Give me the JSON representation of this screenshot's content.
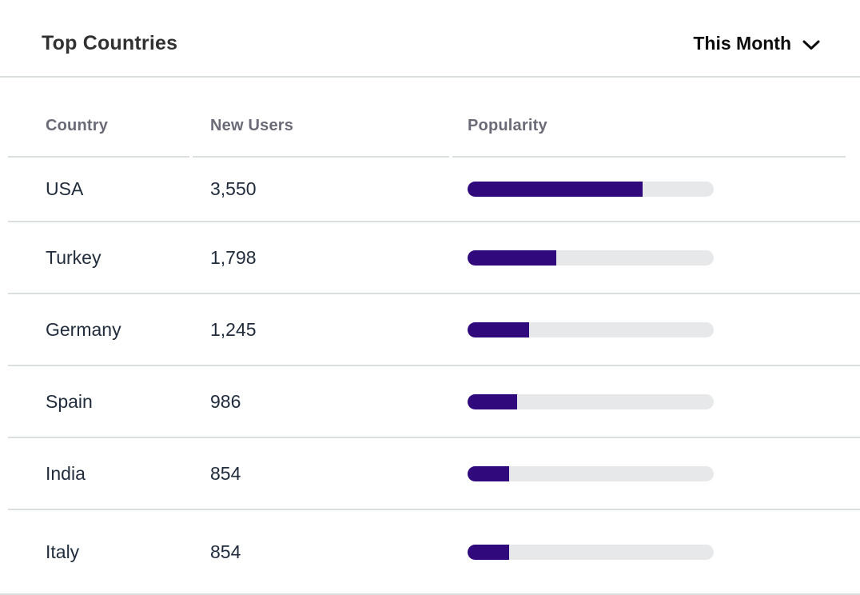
{
  "colors": {
    "card_bg": "#ffffff",
    "divider": "#dcdfdf",
    "title_text": "#313131",
    "period_text": "#0c0c0c",
    "column_header_text": "#6a6b77",
    "row_text": "#212c3c",
    "bar_fill": "#30097d",
    "bar_track": "#e6e8e9"
  },
  "header": {
    "title": "Top Countries",
    "period_dropdown": {
      "selected": "This Month",
      "icon": "chevron-down"
    }
  },
  "table": {
    "columns": [
      "Country",
      "New Users",
      "Popularity"
    ],
    "rows": [
      {
        "country": "USA",
        "new_users": "3,550",
        "popularity_pct": 71
      },
      {
        "country": "Turkey",
        "new_users": "1,798",
        "popularity_pct": 36
      },
      {
        "country": "Germany",
        "new_users": "1,245",
        "popularity_pct": 25
      },
      {
        "country": "Spain",
        "new_users": "986",
        "popularity_pct": 20
      },
      {
        "country": "India",
        "new_users": "854",
        "popularity_pct": 17
      },
      {
        "country": "Italy",
        "new_users": "854",
        "popularity_pct": 17
      }
    ]
  },
  "chart_data": {
    "type": "table",
    "title": "Top Countries",
    "columns": [
      "Country",
      "New Users",
      "Popularity"
    ],
    "categories": [
      "USA",
      "Turkey",
      "Germany",
      "Spain",
      "India",
      "Italy"
    ],
    "new_users": [
      3550,
      1798,
      1245,
      986,
      854,
      854
    ],
    "popularity_pct": [
      71,
      36,
      25,
      20,
      17,
      17
    ],
    "legend": false
  }
}
